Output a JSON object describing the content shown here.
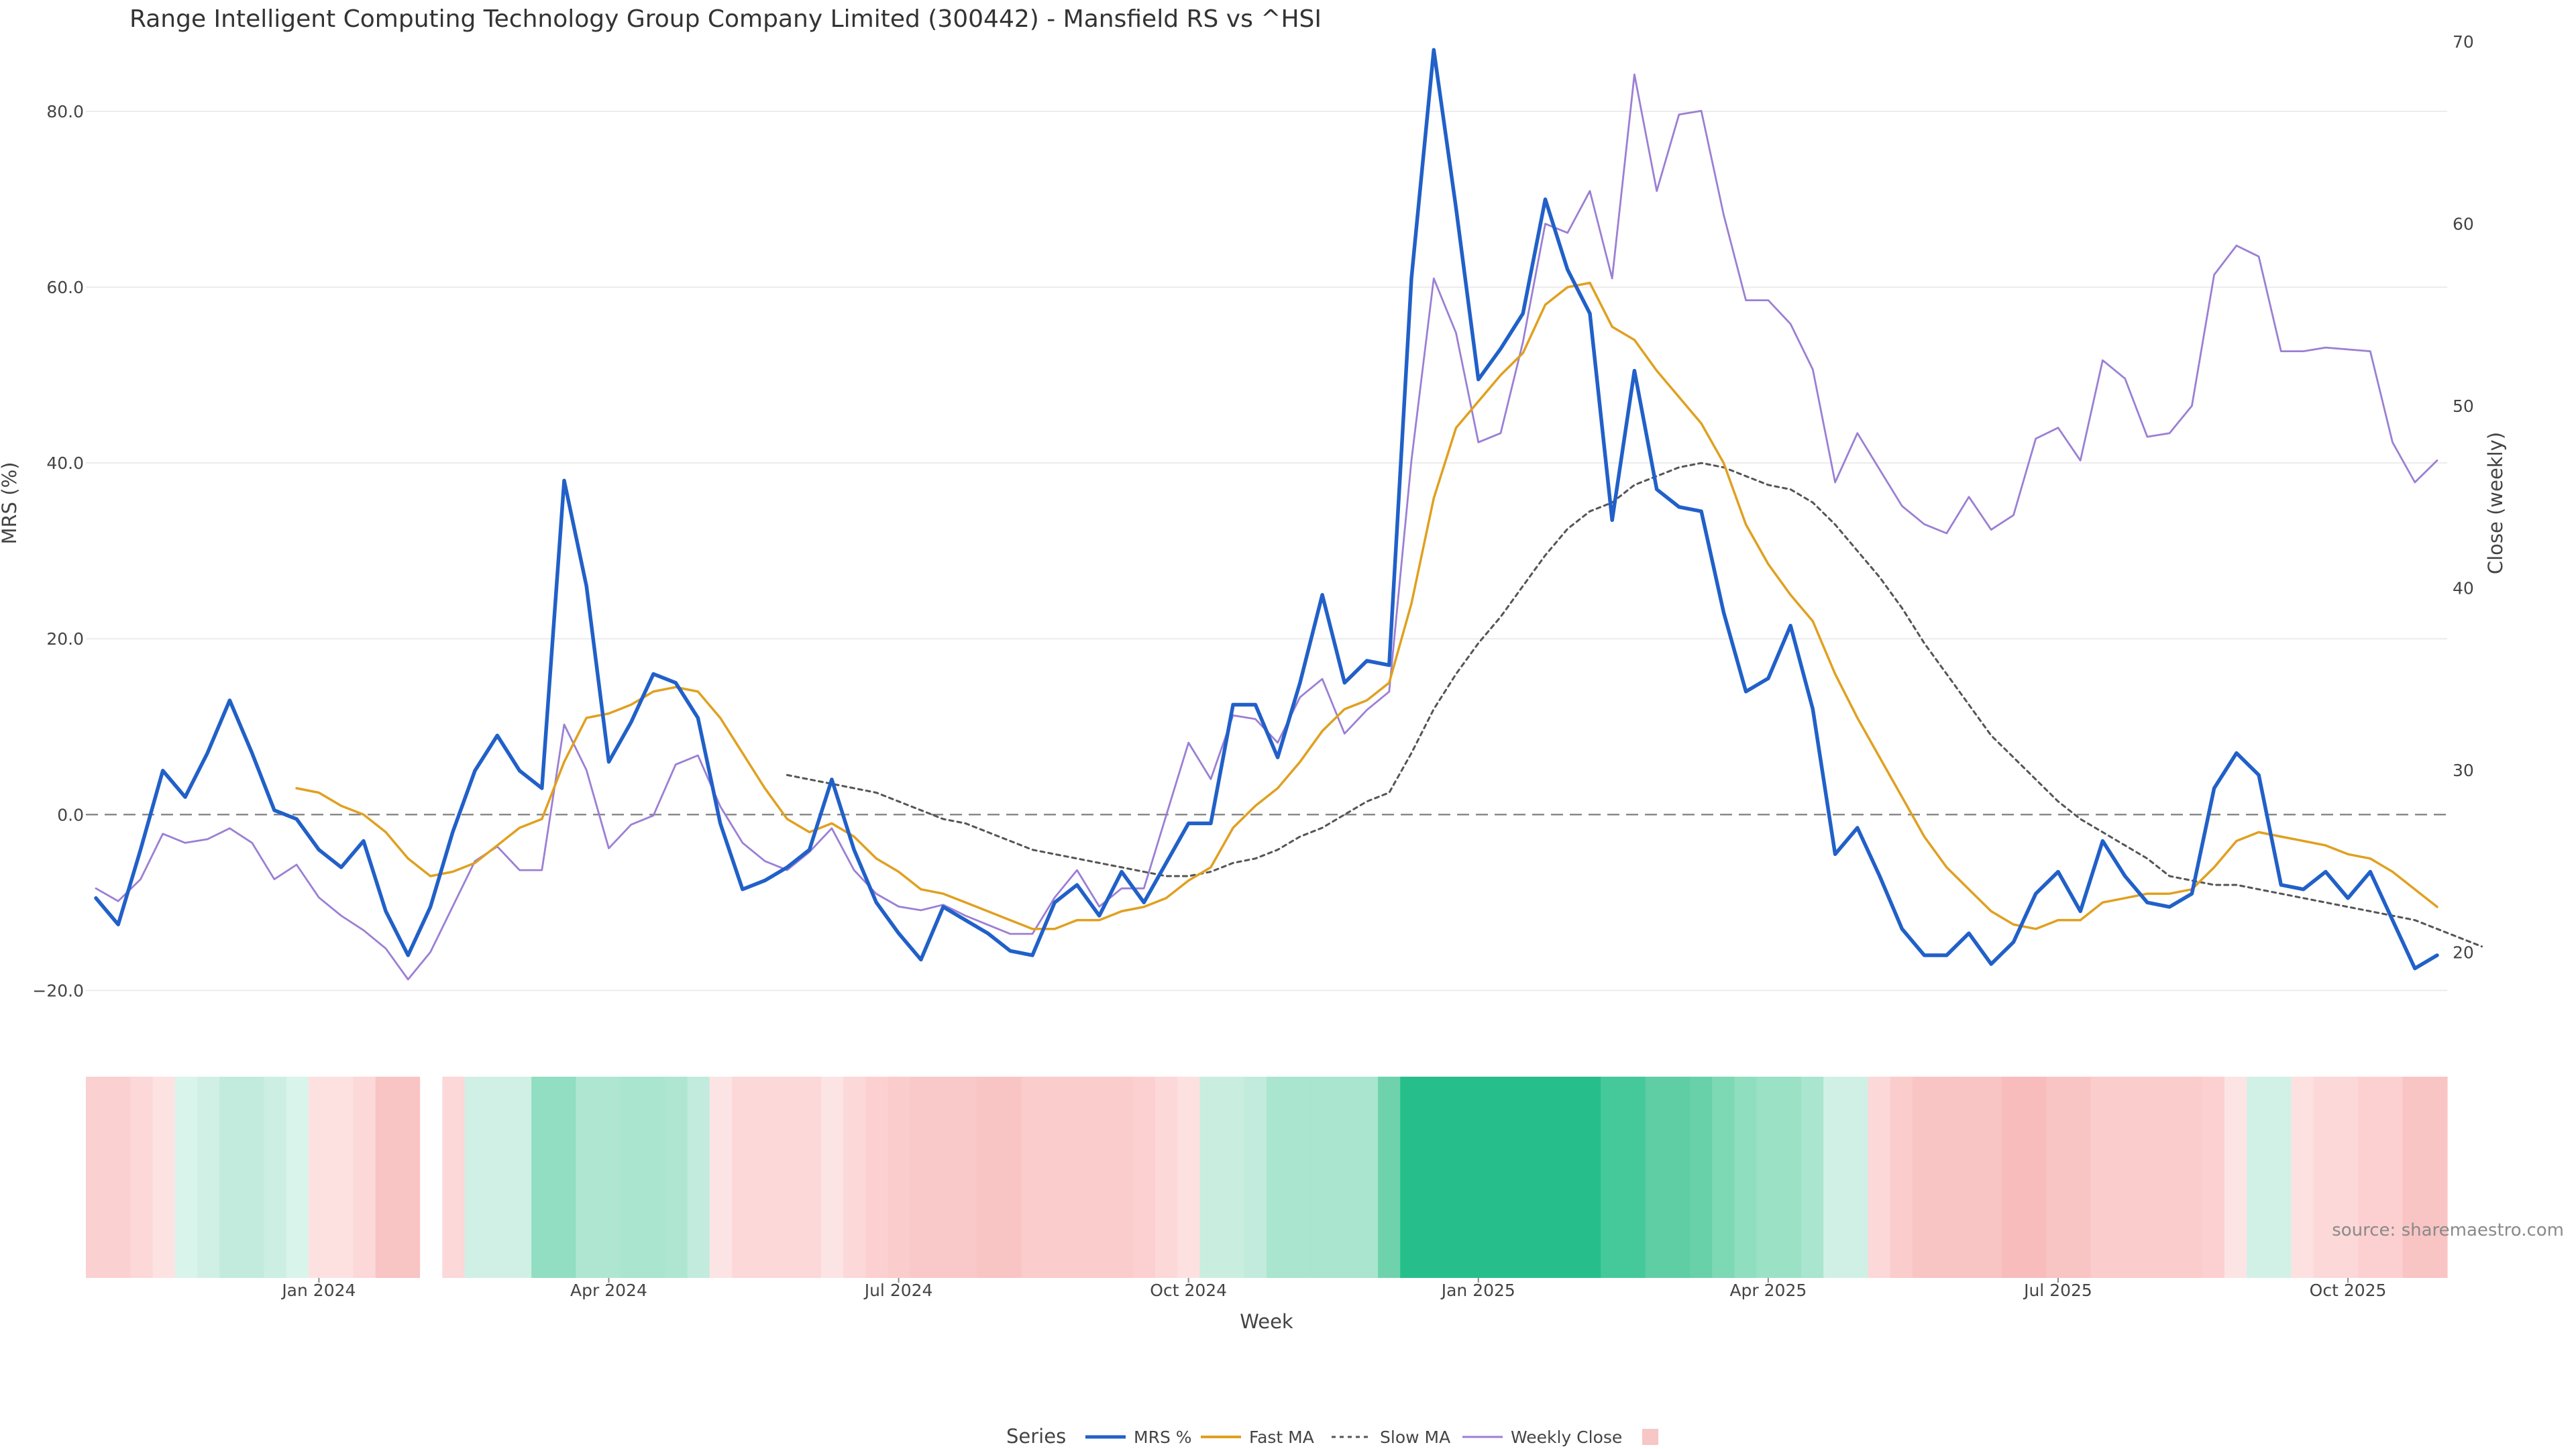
{
  "chart_data": {
    "type": "line",
    "title": "Range Intelligent Computing Technology Group Company Limited (300442) - Mansfield RS vs ^HSI",
    "xlabel": "Week",
    "ylabel": "MRS (%)",
    "y2label": "Close (weekly)",
    "x_ticks": [
      "Jan 2024",
      "Apr 2024",
      "Jul 2024",
      "Oct 2024",
      "Jan 2025",
      "Apr 2025",
      "Jul 2025",
      "Oct 2025"
    ],
    "y_ticks": [
      "80.0",
      "60.0",
      "40.0",
      "20.0",
      "0.0",
      "−20.0"
    ],
    "y2_ticks": [
      "70",
      "60",
      "50",
      "40",
      "30",
      "20"
    ],
    "ylim": [
      -26,
      90
    ],
    "y2lim": [
      15,
      71
    ],
    "reference_line": 0,
    "grid": "horizontal",
    "legend_title": "Series",
    "legend_placement": "bottom-center",
    "source": "source: sharemaestro.com",
    "series": [
      {
        "name": "MRS %",
        "color": "#2160c8",
        "values": [
          -9.5,
          -12.5,
          -4,
          5,
          2,
          7,
          13,
          7,
          0.5,
          -0.5,
          -4,
          -6,
          -3,
          -11,
          -16,
          -10.5,
          -2,
          5,
          9,
          5,
          3,
          38,
          26,
          6,
          10.5,
          16,
          15,
          11,
          -1,
          -8.5,
          -7.5,
          -6,
          -4,
          4,
          -4,
          -10,
          -13.5,
          -16.5,
          -10.5,
          -12,
          -13.5,
          -15.5,
          -16,
          -10,
          -8,
          -11.5,
          -6.5,
          -10,
          -5.5,
          -1,
          -1,
          12.5,
          12.5,
          6.5,
          15,
          25,
          15,
          17.5,
          17,
          61,
          87,
          69,
          49.5,
          53,
          57,
          70,
          62,
          57,
          33.5,
          50.5,
          37,
          35,
          34.5,
          23,
          14,
          15.5,
          21.5,
          12,
          -4.5,
          -1.5,
          -7,
          -13,
          -16,
          -16,
          -13.5,
          -17,
          -14.5,
          -9,
          -6.5,
          -11,
          -3,
          -7,
          -10,
          -10.5,
          -9,
          3,
          7,
          4.5,
          -8,
          -8.5,
          -6.5,
          -9.5,
          -6.5,
          -12,
          -17.5,
          -16
        ]
      },
      {
        "name": "Fast MA",
        "color": "#e0a020",
        "values": [
          null,
          null,
          null,
          null,
          null,
          null,
          null,
          null,
          null,
          3,
          2.5,
          1,
          0,
          -2,
          -5,
          -7,
          -6.5,
          -5.5,
          -3.5,
          -1.5,
          -0.5,
          6,
          11,
          11.5,
          12.5,
          14,
          14.5,
          14,
          11,
          7,
          3,
          -0.5,
          -2,
          -1,
          -2.5,
          -5,
          -6.5,
          -8.5,
          -9,
          -10,
          -11,
          -12,
          -13,
          -13,
          -12,
          -12,
          -11,
          -10.5,
          -9.5,
          -7.5,
          -6,
          -1.5,
          1,
          3,
          6,
          9.5,
          12,
          13,
          15,
          24,
          36,
          44,
          47,
          50,
          52.5,
          58,
          60,
          60.5,
          55.5,
          54,
          50.5,
          47.5,
          44.5,
          40,
          33,
          28.5,
          25,
          22,
          16,
          11,
          6.5,
          2,
          -2.5,
          -6,
          -8.5,
          -11,
          -12.5,
          -13,
          -12,
          -12,
          -10,
          -9.5,
          -9,
          -9,
          -8.5,
          -6,
          -3,
          -2,
          -2.5,
          -3,
          -3.5,
          -4.5,
          -5,
          -6.5,
          -8.5,
          -10.5
        ]
      },
      {
        "name": "Slow MA",
        "color": "#555555",
        "values": [
          null,
          null,
          null,
          null,
          null,
          null,
          null,
          null,
          null,
          null,
          null,
          null,
          null,
          null,
          null,
          null,
          null,
          null,
          null,
          null,
          null,
          null,
          null,
          null,
          null,
          null,
          null,
          null,
          null,
          null,
          null,
          4.5,
          4,
          3.5,
          3,
          2.5,
          1.5,
          0.5,
          -0.5,
          -1,
          -2,
          -3,
          -4,
          -4.5,
          -5,
          -5.5,
          -6,
          -6.5,
          -7,
          -7,
          -6.5,
          -5.5,
          -5,
          -4,
          -2.5,
          -1.5,
          0,
          1.5,
          2.5,
          7,
          12,
          16,
          19.5,
          22.5,
          26,
          29.5,
          32.5,
          34.5,
          35.5,
          37.5,
          38.5,
          39.5,
          40,
          39.5,
          38.5,
          37.5,
          37,
          35.5,
          33,
          30,
          27,
          23.5,
          19.5,
          16,
          12.5,
          9,
          6.5,
          4,
          1.5,
          -0.5,
          -2,
          -3.5,
          -5,
          -7,
          -7.5,
          -8,
          -8,
          -8.5,
          -9,
          -9.5,
          -10,
          -10.5,
          -11,
          -11.5,
          -12,
          -13,
          -14,
          -15
        ]
      },
      {
        "name": "Weekly Close",
        "color": "#9b7fd4",
        "axis": "right",
        "values": [
          23.5,
          22.8,
          24,
          26.5,
          26,
          26.2,
          26.8,
          26,
          24,
          24.8,
          23,
          22,
          21.2,
          20.2,
          18.5,
          20,
          22.5,
          25,
          25.8,
          24.5,
          24.5,
          32.5,
          30,
          25.7,
          27,
          27.5,
          30.3,
          30.8,
          28,
          26,
          25,
          24.5,
          25.5,
          26.8,
          24.5,
          23.2,
          22.5,
          22.3,
          22.6,
          22,
          21.5,
          21,
          21,
          23,
          24.5,
          22.5,
          23.5,
          23.5,
          27.5,
          31.5,
          29.5,
          33,
          32.8,
          31.5,
          34,
          35,
          32,
          33.3,
          34.3,
          47,
          57,
          54,
          48,
          48.5,
          53.5,
          60,
          59.5,
          61.8,
          57,
          68.2,
          61.8,
          66,
          66.2,
          60.5,
          55.8,
          55.8,
          54.5,
          52,
          45.8,
          48.5,
          46.5,
          44.5,
          43.5,
          43,
          45,
          43.2,
          44,
          48.2,
          48.8,
          47,
          52.5,
          51.5,
          48.3,
          48.5,
          50,
          57.2,
          58.8,
          58.2,
          53,
          53,
          53.2,
          53.1,
          53,
          48,
          45.8,
          47
        ]
      }
    ],
    "heatmap_colors": [
      "#fbd0d0",
      "#fbd0d0",
      "#fcd8d8",
      "#fde2e2",
      "#d9f4eb",
      "#d0f0e5",
      "#c2ebdd",
      "#c2ebdd",
      "#cdefe3",
      "#d9f4eb",
      "#fde0e0",
      "#fde0e0",
      "#fcd8d8",
      "#f9c4c4",
      "#f9c4c4",
      "#ffffff",
      "#fcd8d8",
      "#d0f0e5",
      "#d0f0e5",
      "#d0f0e5",
      "#91dec2",
      "#91dec2",
      "#afe6d2",
      "#afe6d2",
      "#a9e5cf",
      "#a9e5cf",
      "#afe6d2",
      "#c2ebdd",
      "#fde4e4",
      "#fcd8d8",
      "#fcd8d8",
      "#fcd8d8",
      "#fcd8d8",
      "#fde4e4",
      "#fcd8d8",
      "#fcd0d0",
      "#fbcccc",
      "#f9c8c8",
      "#f9c8c8",
      "#f9c8c8",
      "#f9c4c4",
      "#f9c4c4",
      "#fbcccc",
      "#fbcccc",
      "#fbcccc",
      "#fbcccc",
      "#fbcccc",
      "#fcd0d0",
      "#fcd8d8",
      "#fde0e0",
      "#c9eedf",
      "#c9eedf",
      "#c2ebdd",
      "#a9e5cf",
      "#a9e5cf",
      "#a9e5cf",
      "#a9e5cf",
      "#a9e5cf",
      "#6ed3ad",
      "#26bf8b",
      "#26bf8b",
      "#26bf8b",
      "#26bf8b",
      "#26bf8b",
      "#26bf8b",
      "#26bf8b",
      "#26bf8b",
      "#26bf8b",
      "#45c99a",
      "#45c99a",
      "#5fcea5",
      "#5fcea5",
      "#68d1a9",
      "#7dd8b4",
      "#8fdebf",
      "#9be1c6",
      "#9be1c6",
      "#a9e5cf",
      "#d0f0e5",
      "#d0f0e5",
      "#fcd8d8",
      "#fbcccc",
      "#f9c4c4",
      "#f9c4c4",
      "#f9c4c4",
      "#f9c4c4",
      "#f8bcbc",
      "#f8bcbc",
      "#f9c4c4",
      "#f9c4c4",
      "#fbcccc",
      "#fbcccc",
      "#fbcccc",
      "#fbcccc",
      "#fbcccc",
      "#fcd0d0",
      "#fde4e4",
      "#d2f1e6",
      "#d2f1e6",
      "#fde0e0",
      "#fcd8d8",
      "#fcd8d8",
      "#fcd0d0",
      "#fcd0d0",
      "#f9c4c4",
      "#f9c4c4"
    ]
  }
}
